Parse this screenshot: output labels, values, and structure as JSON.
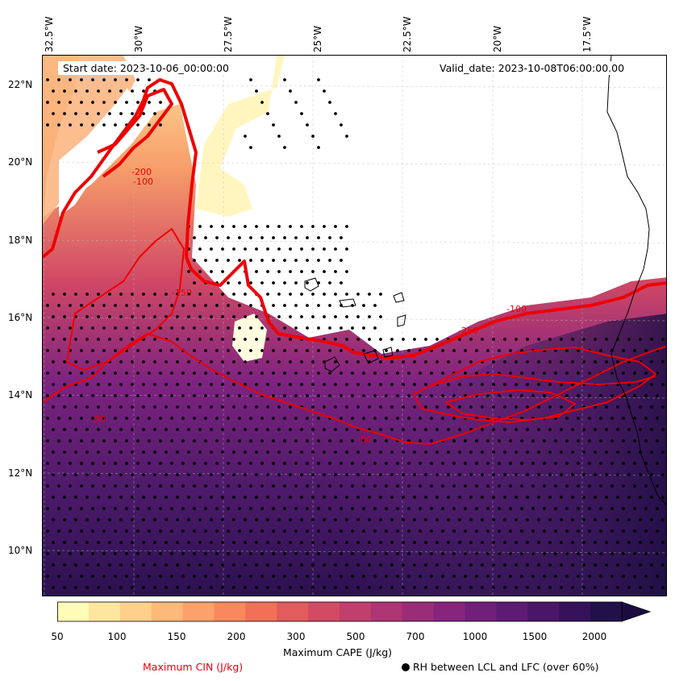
{
  "map": {
    "start_date": "Start date: 2023-10-06_00:00:00",
    "valid_date": "Valid_date: 2023-10-08T06:00:00.00",
    "lon_ticks": [
      "32.5°W",
      "30°W",
      "27.5°W",
      "25°W",
      "22.5°W",
      "20°W",
      "17.5°W"
    ],
    "lat_ticks": [
      "22°N",
      "20°N",
      "18°N",
      "16°N",
      "14°N",
      "12°N",
      "10°N"
    ]
  },
  "colorbar": {
    "label": "Maximum CAPE (J/kg)",
    "tick_labels": [
      "50",
      "100",
      "150",
      "200",
      "300",
      "500",
      "700",
      "1000",
      "1500",
      "2000"
    ],
    "colors": [
      "#fffbb8",
      "#fee6a0",
      "#fed08c",
      "#fdb97a",
      "#fca16a",
      "#f9885e",
      "#f17057",
      "#e35b5c",
      "#d34a64",
      "#c03f6d",
      "#ad3574",
      "#992d78",
      "#85257b",
      "#71207a",
      "#5e1b74",
      "#4a1668",
      "#36125a",
      "#22104a"
    ],
    "extend_color": "#1c0b3f"
  },
  "legend": {
    "cin_label": "Maximum CIN (J/kg)",
    "cin_color": "#e8000f",
    "rh_label": "RH between LCL and LFC (over 60%)"
  },
  "contour_labels": [
    "-50",
    "-100",
    "-150",
    "-200",
    "-250"
  ]
}
